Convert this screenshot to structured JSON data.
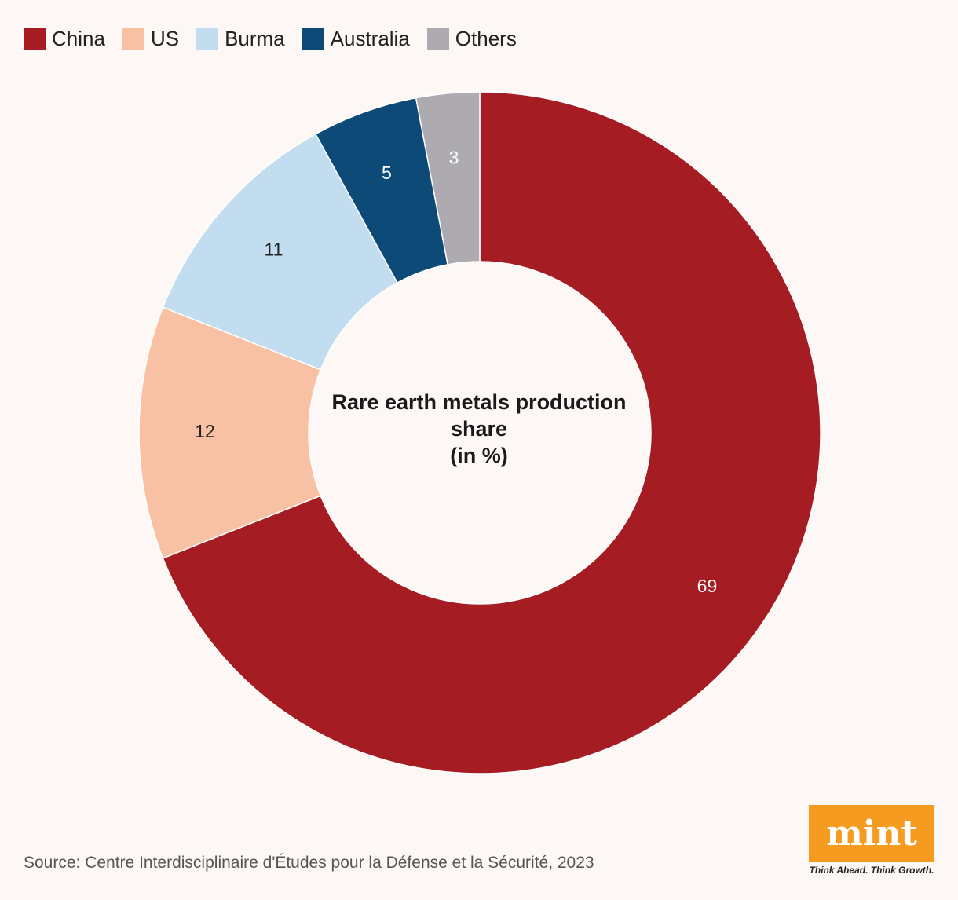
{
  "chart_data": {
    "type": "pie",
    "title": "Rare earth metals production",
    "title_line2": "share",
    "subtitle": "(in %)",
    "categories": [
      "China",
      "US",
      "Burma",
      "Australia",
      "Others"
    ],
    "values": [
      69,
      12,
      11,
      5,
      3
    ],
    "colors": [
      "#a51d23",
      "#f9c1a3",
      "#c1ddef",
      "#0d4a78",
      "#adaab0"
    ],
    "label_colors": [
      "#ffffff",
      "#222222",
      "#222222",
      "#ffffff",
      "#ffffff"
    ],
    "legend_position": "top-left",
    "style": "donut"
  },
  "source": "Source: Centre Interdisciplinaire d'Études pour la Défense et la Sécurité, 2023",
  "brand": {
    "logo": "mint",
    "tagline": "Think Ahead. Think Growth."
  }
}
